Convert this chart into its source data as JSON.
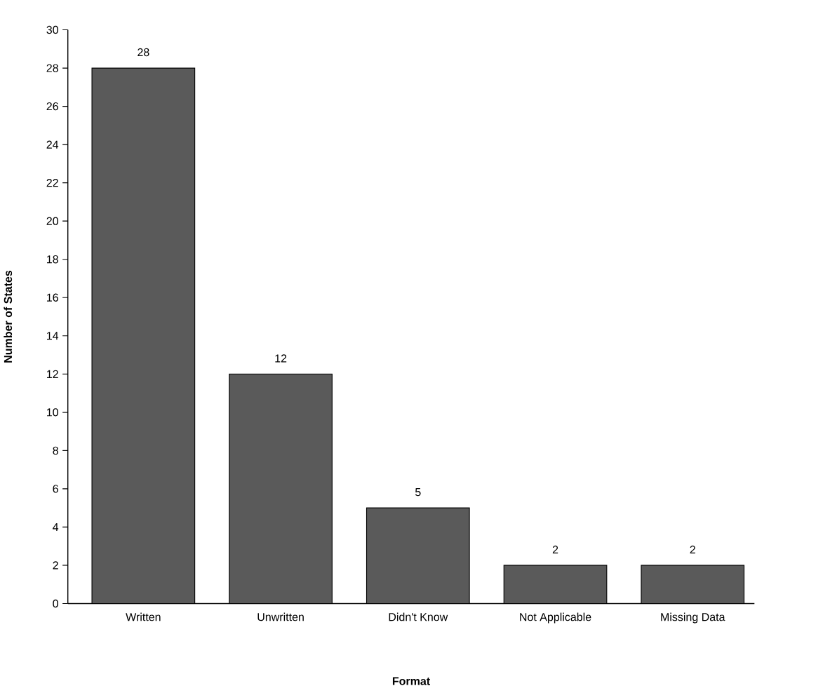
{
  "chart_data": {
    "type": "bar",
    "xlabel": "Format",
    "ylabel": "Number of States",
    "categories": [
      "Written",
      "Unwritten",
      "Didn't Know",
      "Not Applicable",
      "Missing Data"
    ],
    "values": [
      28,
      12,
      5,
      2,
      2
    ],
    "color": "#5a5a5a",
    "ylim": [
      0,
      30
    ],
    "yticks": [
      0,
      2,
      4,
      6,
      8,
      10,
      12,
      14,
      16,
      18,
      20,
      22,
      24,
      26,
      28,
      30
    ],
    "data_labels": true,
    "grid": false
  }
}
